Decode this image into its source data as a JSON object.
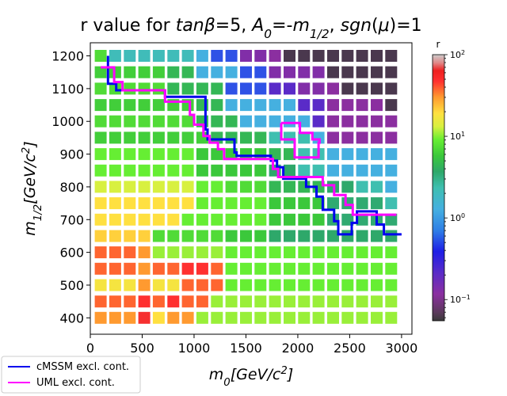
{
  "chart_data": {
    "type": "heatmap",
    "title_parts": [
      {
        "t": "r value for ",
        "s": "n"
      },
      {
        "t": "tanβ",
        "s": "i"
      },
      {
        "t": "=5, ",
        "s": "n"
      },
      {
        "t": "A",
        "s": "i"
      },
      {
        "t": "0",
        "s": "sub"
      },
      {
        "t": "=-",
        "s": "n"
      },
      {
        "t": "m",
        "s": "i"
      },
      {
        "t": "1/2",
        "s": "sub"
      },
      {
        "t": ", ",
        "s": "n"
      },
      {
        "t": "sgn",
        "s": "i"
      },
      {
        "t": "(",
        "s": "n"
      },
      {
        "t": "μ",
        "s": "i"
      },
      {
        "t": ")=1",
        "s": "n"
      }
    ],
    "xlabel_parts": [
      {
        "t": "m",
        "s": "i"
      },
      {
        "t": "0",
        "s": "sub"
      },
      {
        "t": "[GeV/c",
        "s": "i"
      },
      {
        "t": "2",
        "s": "sup"
      },
      {
        "t": "]",
        "s": "i"
      }
    ],
    "ylabel_parts": [
      {
        "t": "m",
        "s": "i"
      },
      {
        "t": "1/2",
        "s": "sub"
      },
      {
        "t": "[GeV/c",
        "s": "i"
      },
      {
        "t": "2",
        "s": "sup"
      },
      {
        "t": "]",
        "s": "i"
      }
    ],
    "xlim": [
      0,
      3100
    ],
    "ylim": [
      350,
      1240
    ],
    "xticks": [
      "0",
      "500",
      "1000",
      "1500",
      "2000",
      "2500",
      "3000"
    ],
    "yticks": [
      "400",
      "500",
      "600",
      "700",
      "800",
      "900",
      "1000",
      "1100",
      "1200"
    ],
    "x": [
      100,
      240,
      380,
      520,
      660,
      800,
      940,
      1080,
      1220,
      1360,
      1500,
      1640,
      1780,
      1920,
      2060,
      2200,
      2340,
      2480,
      2620,
      2760,
      2900
    ],
    "y": [
      400,
      450,
      500,
      550,
      600,
      650,
      700,
      750,
      800,
      850,
      900,
      950,
      1000,
      1050,
      1100,
      1150,
      1200
    ],
    "colorbar": {
      "label": "r",
      "scale": "log",
      "range": [
        0.055,
        100
      ],
      "tick_labels": [
        {
          "base": "10",
          "exp": "−1"
        },
        {
          "base": "10",
          "exp": "0"
        },
        {
          "base": "10",
          "exp": "1"
        },
        {
          "base": "10",
          "exp": "2"
        }
      ]
    },
    "r_log10_grid": [
      [
        1.05,
        1.05,
        1.05,
        1.18,
        0.92,
        1.05,
        1.05,
        0.69,
        0.69,
        0.69,
        0.69,
        0.69,
        0.69,
        0.69,
        0.69,
        0.69,
        0.69,
        0.69,
        0.69,
        0.69,
        0.69
      ],
      [
        1.1,
        1.1,
        1.1,
        1.15,
        1.1,
        1.15,
        1.1,
        1.1,
        0.69,
        0.69,
        0.69,
        0.69,
        0.69,
        0.69,
        0.69,
        0.69,
        0.69,
        0.69,
        0.69,
        0.69,
        0.69
      ],
      [
        0.89,
        0.89,
        0.89,
        1.05,
        0.89,
        0.89,
        1.1,
        1.1,
        1.1,
        0.6,
        0.6,
        0.6,
        0.6,
        0.6,
        0.6,
        0.6,
        0.6,
        0.6,
        0.6,
        0.6,
        0.6
      ],
      [
        1.1,
        1.1,
        1.1,
        1.05,
        1.1,
        1.1,
        1.15,
        1.15,
        1.1,
        0.6,
        0.6,
        0.6,
        0.6,
        0.6,
        0.6,
        0.6,
        0.6,
        0.6,
        0.6,
        0.6,
        0.6
      ],
      [
        1.1,
        1.1,
        1.1,
        1.05,
        0.69,
        0.69,
        0.69,
        0.69,
        0.69,
        0.6,
        0.6,
        0.6,
        0.6,
        0.6,
        0.6,
        0.6,
        0.6,
        0.6,
        0.6,
        0.6,
        0.6
      ],
      [
        0.95,
        0.95,
        0.95,
        0.95,
        0.45,
        0.45,
        0.45,
        0.45,
        0.45,
        0.3,
        0.3,
        0.3,
        0.08,
        0.08,
        0.08,
        0.08,
        0.08,
        0.08,
        0.08,
        0.08,
        0.08
      ],
      [
        0.92,
        0.92,
        0.92,
        0.92,
        0.92,
        0.92,
        0.6,
        0.6,
        0.6,
        0.6,
        0.6,
        0.6,
        0.3,
        0.3,
        0.3,
        0.3,
        0.06,
        0.06,
        0.06,
        0.06,
        0.06
      ],
      [
        0.92,
        0.92,
        0.92,
        0.92,
        0.92,
        0.92,
        0.92,
        0.6,
        0.6,
        0.6,
        0.6,
        0.6,
        0.3,
        0.3,
        0.3,
        0.3,
        0.06,
        0.06,
        0.06,
        0.06,
        -0.13
      ],
      [
        0.8,
        0.8,
        0.8,
        0.8,
        0.8,
        0.8,
        0.8,
        0.6,
        0.6,
        0.45,
        0.45,
        0.45,
        0.18,
        0.18,
        0.18,
        0.18,
        0.08,
        0.08,
        -0.13,
        -0.13,
        -0.4
      ],
      [
        0.6,
        0.6,
        0.6,
        0.6,
        0.6,
        0.6,
        0.6,
        0.3,
        0.3,
        0.3,
        0.3,
        0.3,
        0.08,
        0.08,
        -0.13,
        -0.13,
        -0.4,
        -0.4,
        -0.4,
        -0.4,
        -0.4
      ],
      [
        0.6,
        0.6,
        0.6,
        0.6,
        0.6,
        0.6,
        0.6,
        0.3,
        0.3,
        0.3,
        0.3,
        0.3,
        0.18,
        0.18,
        -0.13,
        -0.13,
        -0.4,
        -0.4,
        -0.4,
        -0.4,
        -0.4
      ],
      [
        0.35,
        0.35,
        0.35,
        0.35,
        0.35,
        0.35,
        0.35,
        0.35,
        0.18,
        0.18,
        0.18,
        0.18,
        -0.13,
        -0.13,
        -0.13,
        -0.4,
        -1.0,
        -1.0,
        -1.0,
        -1.0,
        -1.0
      ],
      [
        0.45,
        0.45,
        0.45,
        0.45,
        0.45,
        0.45,
        0.45,
        0.18,
        0.18,
        0.18,
        -0.4,
        -0.4,
        -0.4,
        -0.4,
        -0.4,
        -0.75,
        -1.0,
        -1.0,
        -1.0,
        -1.0,
        -1.0
      ],
      [
        0.35,
        0.35,
        0.35,
        0.35,
        0.35,
        0.35,
        0.35,
        0.18,
        0.18,
        -0.4,
        -0.4,
        -0.4,
        -0.4,
        -0.4,
        -0.75,
        -0.75,
        -1.0,
        -1.0,
        -1.0,
        -1.0,
        -1.2
      ],
      [
        0.45,
        0.45,
        0.45,
        0.45,
        0.45,
        0.18,
        0.18,
        0.18,
        0.18,
        -0.6,
        -0.6,
        -0.6,
        -0.75,
        -0.75,
        -0.95,
        -0.95,
        -1.0,
        -1.2,
        -1.2,
        -1.2,
        -1.2
      ],
      [
        0.35,
        0.35,
        0.35,
        0.35,
        0.35,
        0.18,
        0.18,
        -0.4,
        -0.4,
        -0.4,
        -0.6,
        -0.6,
        -0.95,
        -0.95,
        -0.95,
        -0.95,
        -1.2,
        -1.2,
        -1.2,
        -1.2,
        -1.2
      ],
      [
        0.45,
        -0.18,
        -0.18,
        -0.18,
        -0.18,
        -0.18,
        -0.18,
        -0.4,
        -0.6,
        -0.6,
        -0.95,
        -0.95,
        -1.0,
        -1.2,
        -1.2,
        -1.2,
        -1.2,
        -1.2,
        -1.2,
        -1.2,
        -1.2
      ]
    ],
    "series": [
      {
        "name": "cMSSM excl. cont.",
        "color": "#0000ee",
        "points": [
          [
            170,
            1200
          ],
          [
            170,
            1115
          ],
          [
            250,
            1115
          ],
          [
            250,
            1095
          ],
          [
            720,
            1095
          ],
          [
            720,
            1075
          ],
          [
            1110,
            1075
          ],
          [
            1110,
            975
          ],
          [
            1130,
            975
          ],
          [
            1130,
            945
          ],
          [
            1390,
            945
          ],
          [
            1390,
            905
          ],
          [
            1410,
            905
          ],
          [
            1410,
            895
          ],
          [
            1740,
            895
          ],
          [
            1740,
            880
          ],
          [
            1800,
            880
          ],
          [
            1800,
            860
          ],
          [
            1860,
            860
          ],
          [
            1860,
            825
          ],
          [
            2080,
            825
          ],
          [
            2080,
            800
          ],
          [
            2180,
            800
          ],
          [
            2180,
            770
          ],
          [
            2240,
            770
          ],
          [
            2240,
            730
          ],
          [
            2350,
            730
          ],
          [
            2350,
            695
          ],
          [
            2390,
            695
          ],
          [
            2390,
            655
          ],
          [
            2520,
            655
          ],
          [
            2520,
            690
          ],
          [
            2570,
            690
          ],
          [
            2570,
            725
          ],
          [
            2760,
            725
          ],
          [
            2760,
            685
          ],
          [
            2830,
            685
          ],
          [
            2830,
            655
          ],
          [
            3000,
            655
          ]
        ]
      },
      {
        "name": "UML excl. cont.",
        "color": "#ff00ff",
        "points": [
          [
            100,
            1165
          ],
          [
            230,
            1165
          ],
          [
            230,
            1120
          ],
          [
            310,
            1120
          ],
          [
            310,
            1095
          ],
          [
            720,
            1095
          ],
          [
            720,
            1060
          ],
          [
            960,
            1060
          ],
          [
            960,
            1020
          ],
          [
            1000,
            1020
          ],
          [
            1000,
            990
          ],
          [
            1090,
            990
          ],
          [
            1090,
            955
          ],
          [
            1150,
            955
          ],
          [
            1150,
            935
          ],
          [
            1230,
            935
          ],
          [
            1230,
            915
          ],
          [
            1290,
            915
          ],
          [
            1290,
            885
          ],
          [
            1760,
            885
          ],
          [
            1760,
            855
          ],
          [
            1810,
            855
          ],
          [
            1810,
            830
          ],
          [
            2240,
            830
          ],
          [
            2240,
            805
          ],
          [
            2350,
            805
          ],
          [
            2350,
            775
          ],
          [
            2460,
            775
          ],
          [
            2460,
            745
          ],
          [
            2530,
            745
          ],
          [
            2530,
            715
          ],
          [
            2950,
            715
          ]
        ]
      },
      {
        "name": "",
        "color": "#ff00ff",
        "points": [
          [
            1840,
            995
          ],
          [
            2020,
            995
          ],
          [
            2020,
            965
          ],
          [
            2140,
            965
          ],
          [
            2140,
            945
          ],
          [
            2210,
            945
          ],
          [
            2210,
            935
          ],
          [
            2200,
            935
          ],
          [
            2200,
            890
          ],
          [
            1970,
            890
          ],
          [
            1970,
            945
          ],
          [
            1840,
            945
          ],
          [
            1840,
            995
          ]
        ]
      }
    ]
  }
}
